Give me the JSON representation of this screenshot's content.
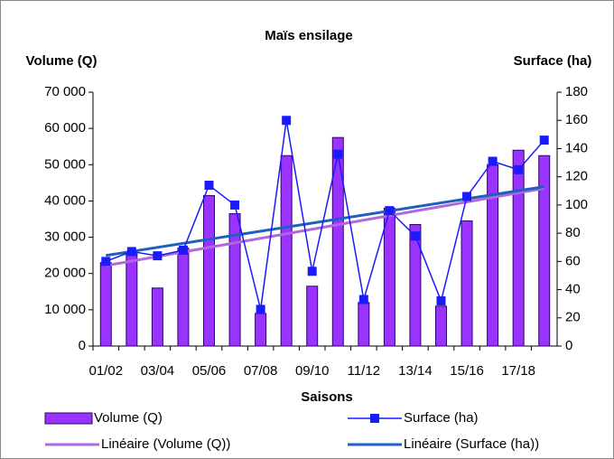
{
  "chart_data": {
    "type": "bar-line",
    "title": "Maïs ensilage",
    "y_label": "Volume (Q)",
    "y2_label": "Surface (ha)",
    "x_label": "Saisons",
    "categories": [
      "01/02",
      null,
      "03/04",
      null,
      "05/06",
      null,
      "07/08",
      null,
      "09/10",
      null,
      "11/12",
      null,
      "13/14",
      null,
      "15/16",
      null,
      "17/18",
      null
    ],
    "series": [
      {
        "name": "Volume (Q)",
        "type": "bar",
        "color": "#9933ff",
        "values": [
          23000,
          26000,
          16000,
          27000,
          41500,
          36500,
          9000,
          52500,
          16500,
          57500,
          12000,
          38000,
          33500,
          11000,
          34500,
          50000,
          54000,
          52500
        ]
      },
      {
        "name": "Surface (ha)",
        "type": "line",
        "axis": "y2",
        "color": "#1a1aff",
        "values": [
          60,
          67,
          64,
          68,
          114,
          100,
          26,
          160,
          53,
          136,
          33,
          96,
          78,
          32,
          106,
          131,
          125,
          146
        ]
      }
    ],
    "trendlines": [
      {
        "name": "Linéaire (Volume (Q))",
        "series": 0,
        "color": "#b266e0"
      },
      {
        "name": "Linéaire (Surface (ha))",
        "series": 1,
        "color": "#1f5fbf"
      }
    ],
    "ylim": [
      0,
      70000
    ],
    "yticks": [
      0,
      {
        "value": 10000,
        "label": "10 000"
      },
      {
        "value": 20000,
        "label": "20 000"
      },
      {
        "value": 30000,
        "label": "30 000"
      },
      {
        "value": 40000,
        "label": "40 000"
      },
      {
        "value": 50000,
        "label": "50 000"
      },
      {
        "value": 60000,
        "label": "60 000"
      },
      {
        "value": 70000,
        "label": "70 000"
      }
    ],
    "y2lim": [
      0,
      180
    ],
    "y2ticks": [
      0,
      20,
      40,
      60,
      80,
      100,
      120,
      140,
      160,
      180
    ]
  }
}
